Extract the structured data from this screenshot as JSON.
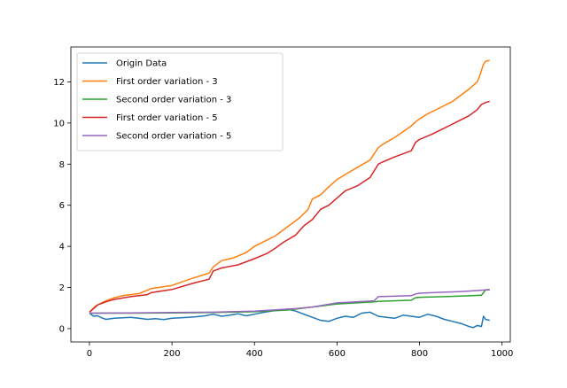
{
  "chart_data": {
    "type": "line",
    "xlim": [
      -45,
      1020
    ],
    "ylim": [
      -0.65,
      13.7
    ],
    "x_ticks": [
      0,
      200,
      400,
      600,
      800,
      1000
    ],
    "y_ticks": [
      0,
      2,
      4,
      6,
      8,
      10,
      12
    ],
    "grid": false,
    "legend_position": "top-left",
    "series": [
      {
        "name": "Origin Data",
        "color": "#1f77b4",
        "x": [
          0,
          10,
          20,
          30,
          40,
          60,
          80,
          100,
          120,
          140,
          160,
          180,
          200,
          220,
          240,
          260,
          280,
          300,
          320,
          340,
          360,
          380,
          400,
          420,
          440,
          460,
          480,
          500,
          520,
          540,
          560,
          580,
          600,
          620,
          640,
          660,
          680,
          700,
          720,
          740,
          760,
          780,
          800,
          820,
          840,
          860,
          880,
          900,
          920,
          930,
          940,
          950,
          955,
          960,
          970
        ],
        "y": [
          0.75,
          0.6,
          0.62,
          0.52,
          0.45,
          0.5,
          0.52,
          0.55,
          0.5,
          0.45,
          0.48,
          0.44,
          0.5,
          0.52,
          0.55,
          0.58,
          0.62,
          0.7,
          0.6,
          0.65,
          0.72,
          0.62,
          0.7,
          0.78,
          0.85,
          0.9,
          0.95,
          0.85,
          0.7,
          0.55,
          0.4,
          0.35,
          0.5,
          0.6,
          0.55,
          0.75,
          0.8,
          0.6,
          0.55,
          0.5,
          0.65,
          0.6,
          0.55,
          0.7,
          0.6,
          0.45,
          0.35,
          0.25,
          0.1,
          0.05,
          0.15,
          0.1,
          0.6,
          0.45,
          0.4
        ]
      },
      {
        "name": "First order variation - 3",
        "color": "#ff7f0e",
        "x": [
          0,
          15,
          40,
          60,
          80,
          120,
          150,
          200,
          250,
          290,
          300,
          320,
          350,
          380,
          400,
          430,
          450,
          470,
          490,
          510,
          530,
          540,
          560,
          580,
          600,
          620,
          650,
          680,
          700,
          710,
          740,
          780,
          790,
          800,
          820,
          850,
          880,
          900,
          920,
          940,
          945,
          955,
          960,
          970
        ],
        "y": [
          0.8,
          1.1,
          1.35,
          1.5,
          1.6,
          1.7,
          1.95,
          2.1,
          2.45,
          2.7,
          3.0,
          3.3,
          3.45,
          3.7,
          4.0,
          4.3,
          4.5,
          4.8,
          5.1,
          5.4,
          5.8,
          6.3,
          6.5,
          6.9,
          7.25,
          7.5,
          7.85,
          8.2,
          8.8,
          8.95,
          9.3,
          9.85,
          10.05,
          10.2,
          10.45,
          10.75,
          11.05,
          11.35,
          11.65,
          12.0,
          12.25,
          12.85,
          13.0,
          13.05
        ]
      },
      {
        "name": "Second order variation - 3",
        "color": "#2ca02c",
        "x": [
          0,
          100,
          200,
          300,
          400,
          480,
          540,
          600,
          690,
          700,
          780,
          790,
          800,
          900,
          950,
          960,
          970
        ],
        "y": [
          0.75,
          0.75,
          0.76,
          0.78,
          0.82,
          0.9,
          1.05,
          1.2,
          1.3,
          1.32,
          1.38,
          1.5,
          1.52,
          1.58,
          1.62,
          1.88,
          1.9
        ]
      },
      {
        "name": "First order variation - 5",
        "color": "#d62728",
        "x": [
          0,
          20,
          40,
          60,
          100,
          140,
          150,
          200,
          250,
          290,
          300,
          320,
          360,
          400,
          430,
          450,
          470,
          500,
          520,
          540,
          560,
          580,
          600,
          620,
          650,
          680,
          700,
          710,
          740,
          780,
          790,
          800,
          830,
          860,
          890,
          920,
          940,
          950,
          960,
          970
        ],
        "y": [
          0.8,
          1.15,
          1.3,
          1.42,
          1.55,
          1.65,
          1.75,
          1.9,
          2.2,
          2.4,
          2.8,
          2.95,
          3.1,
          3.4,
          3.65,
          3.9,
          4.2,
          4.55,
          5.0,
          5.3,
          5.8,
          6.0,
          6.35,
          6.7,
          6.95,
          7.35,
          8.0,
          8.1,
          8.35,
          8.65,
          9.05,
          9.2,
          9.45,
          9.75,
          10.05,
          10.35,
          10.65,
          10.9,
          11.0,
          11.05
        ]
      },
      {
        "name": "Second order variation - 5",
        "color": "#9467bd",
        "x": [
          0,
          100,
          200,
          300,
          400,
          500,
          540,
          600,
          690,
          700,
          780,
          790,
          800,
          900,
          940,
          960,
          970
        ],
        "y": [
          0.75,
          0.76,
          0.78,
          0.8,
          0.85,
          0.97,
          1.05,
          1.25,
          1.35,
          1.55,
          1.6,
          1.68,
          1.72,
          1.8,
          1.85,
          1.88,
          1.88
        ]
      }
    ]
  }
}
